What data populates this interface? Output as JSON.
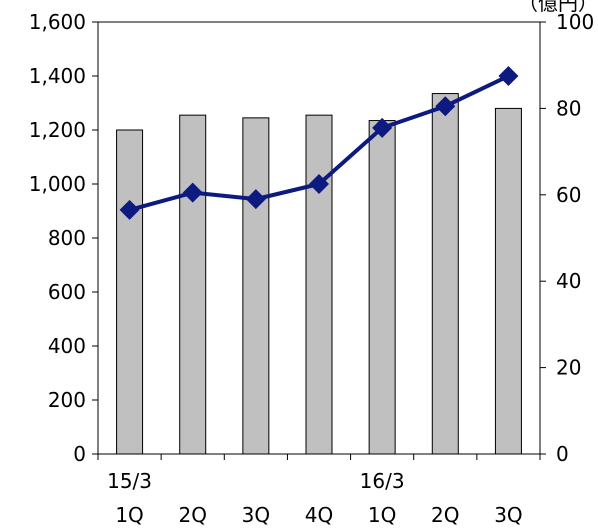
{
  "chart_data": {
    "type": "bar+line",
    "unit_label": "（億円）",
    "categories": [
      "1Q",
      "2Q",
      "3Q",
      "4Q",
      "1Q",
      "2Q",
      "3Q"
    ],
    "fiscal_year_labels": [
      {
        "label": "15/3",
        "category_index": 0
      },
      {
        "label": "16/3",
        "category_index": 4
      }
    ],
    "left_axis": {
      "ylim": [
        0,
        1600
      ],
      "ticks": [
        "0",
        "200",
        "400",
        "600",
        "800",
        "1,000",
        "1,200",
        "1,400",
        "1,600"
      ]
    },
    "right_axis": {
      "ylim": [
        0,
        100
      ],
      "ticks": [
        "0",
        "20",
        "40",
        "60",
        "80",
        "100"
      ]
    },
    "series": [
      {
        "type": "bar",
        "axis": "left",
        "values": [
          1200,
          1255,
          1245,
          1255,
          1235,
          1335,
          1280
        ],
        "color": "#c0c0c0"
      },
      {
        "type": "line",
        "axis": "right",
        "values": [
          56.5,
          60.5,
          59,
          62.5,
          75.5,
          80.5,
          87.5
        ],
        "color": "#0d1a80"
      }
    ],
    "grid": false,
    "legend": "none"
  }
}
